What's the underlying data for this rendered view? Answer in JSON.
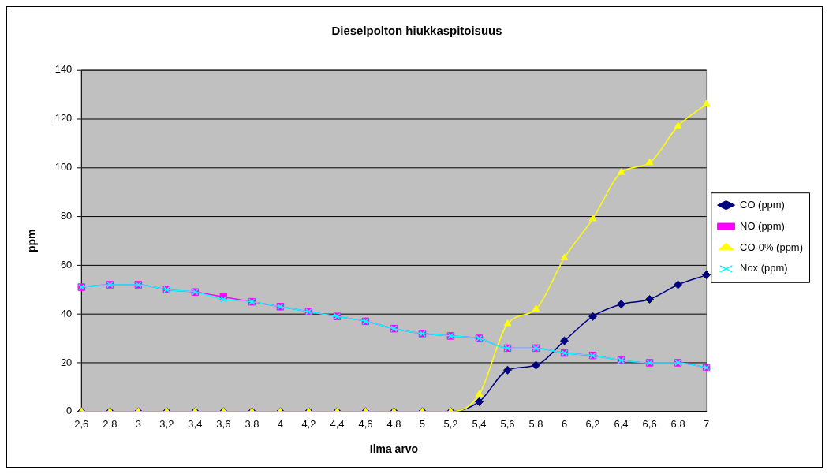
{
  "chart_data": {
    "type": "line",
    "title": "Dieselpolton hiukkaspitoisuus",
    "xlabel": "Ilma arvo",
    "ylabel": "ppm",
    "categories": [
      "2,6",
      "2,8",
      "3",
      "3,2",
      "3,4",
      "3,6",
      "3,8",
      "4",
      "4,2",
      "4,4",
      "4,6",
      "4,8",
      "5",
      "5,2",
      "5,4",
      "5,6",
      "5,8",
      "6",
      "6,2",
      "6,4",
      "6,6",
      "6,8",
      "7"
    ],
    "series": [
      {
        "name": "CO (ppm)",
        "color": "#000080",
        "marker": "diamond",
        "values": [
          0,
          0,
          0,
          0,
          0,
          0,
          0,
          0,
          0,
          0,
          0,
          0,
          0,
          0,
          4,
          17,
          19,
          29,
          39,
          44,
          46,
          52,
          56
        ]
      },
      {
        "name": "NO (ppm)",
        "color": "#ff00ff",
        "marker": "square",
        "values": [
          51,
          52,
          52,
          50,
          49,
          47,
          45,
          43,
          41,
          39,
          37,
          34,
          32,
          31,
          30,
          26,
          26,
          24,
          23,
          21,
          20,
          20,
          18
        ]
      },
      {
        "name": "CO-0% (ppm)",
        "color": "#ffff00",
        "marker": "triangle",
        "values": [
          0,
          0,
          0,
          0,
          0,
          0,
          0,
          0,
          0,
          0,
          0,
          0,
          0,
          0,
          7,
          36,
          42,
          63,
          79,
          98,
          102,
          117,
          126
        ]
      },
      {
        "name": "Nox (ppm)",
        "color": "#00ffff",
        "marker": "cross",
        "values": [
          51,
          52,
          52,
          50,
          49,
          46,
          45,
          43,
          41,
          39,
          37,
          34,
          32,
          31,
          30,
          26,
          26,
          24,
          23,
          21,
          20,
          20,
          18
        ]
      }
    ],
    "ylim": [
      0,
      140
    ],
    "yticks": [
      0,
      20,
      40,
      60,
      80,
      100,
      120,
      140
    ],
    "grid": "y",
    "legend": "right"
  }
}
